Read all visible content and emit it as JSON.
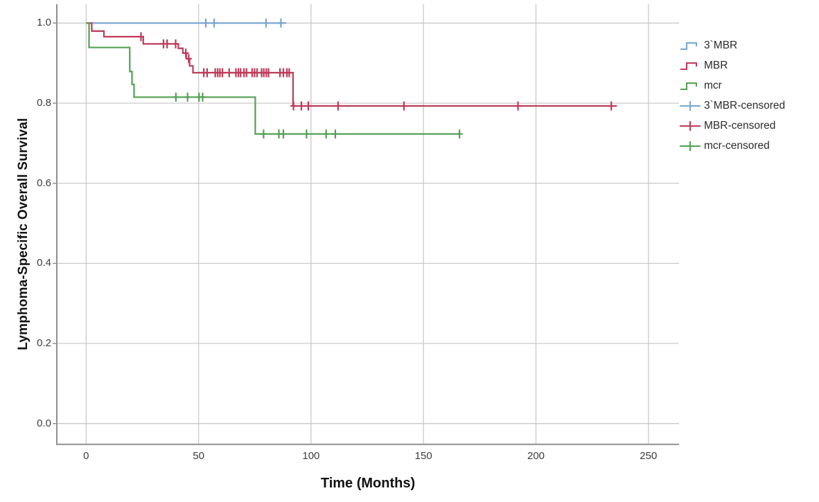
{
  "chart_data": {
    "type": "line",
    "subtype": "kaplan-meier-step-survival",
    "title": "",
    "xlabel": "Time (Months)",
    "ylabel": "Lymphoma-Specific Overall Survival",
    "xlim": [
      0,
      263
    ],
    "ylim": [
      0.0,
      1.0
    ],
    "grid": true,
    "legend_position": "right",
    "xticks": [
      {
        "value": 0,
        "label": "0"
      },
      {
        "value": 50,
        "label": "50"
      },
      {
        "value": 100,
        "label": "100"
      },
      {
        "value": 150,
        "label": "150"
      },
      {
        "value": 200,
        "label": "200"
      },
      {
        "value": 250,
        "label": "250"
      }
    ],
    "yticks": [
      {
        "value": 0.0,
        "label": "0.0"
      },
      {
        "value": 0.2,
        "label": "0.2"
      },
      {
        "value": 0.4,
        "label": "0.4"
      },
      {
        "value": 0.6,
        "label": "0.6"
      },
      {
        "value": 0.8,
        "label": "0.8"
      },
      {
        "value": 1.0,
        "label": "1.0"
      }
    ],
    "colors": {
      "blue_series": "#76A5D2",
      "red_series": "#BE3A58",
      "green_series": "#53A053",
      "grid": "#C9C9C9",
      "axis": "#8F8F8F",
      "tick_text": "#3C3C3C",
      "title_text": "#111111",
      "background": "#FFFFFF"
    },
    "series": [
      {
        "name": "3`MBR",
        "color_key": "blue_series",
        "drops": [
          [
            0,
            1.0
          ]
        ],
        "end": 89,
        "censors": [
          [
            53.2,
            1.0
          ],
          [
            56.9,
            1.0
          ],
          [
            80.0,
            1.0
          ],
          [
            86.6,
            1.0
          ]
        ]
      },
      {
        "name": "MBR",
        "color_key": "red_series",
        "drops": [
          [
            0,
            1.0
          ],
          [
            2.5,
            0.98
          ],
          [
            7.9,
            0.966
          ],
          [
            25.4,
            0.948
          ],
          [
            41.0,
            0.937
          ],
          [
            43.0,
            0.925
          ],
          [
            44.5,
            0.911
          ],
          [
            46.0,
            0.893
          ],
          [
            47.5,
            0.876
          ],
          [
            92.0,
            0.793
          ]
        ],
        "end": 236,
        "censors": [
          [
            24.4,
            0.966
          ],
          [
            34.4,
            0.948
          ],
          [
            36.0,
            0.948
          ],
          [
            39.8,
            0.948
          ],
          [
            44.3,
            0.925
          ],
          [
            45.6,
            0.911
          ],
          [
            52.3,
            0.876
          ],
          [
            53.8,
            0.876
          ],
          [
            57.4,
            0.876
          ],
          [
            58.5,
            0.876
          ],
          [
            59.5,
            0.876
          ],
          [
            60.6,
            0.876
          ],
          [
            63.6,
            0.876
          ],
          [
            66.6,
            0.876
          ],
          [
            67.7,
            0.876
          ],
          [
            68.7,
            0.876
          ],
          [
            70.2,
            0.876
          ],
          [
            71.3,
            0.876
          ],
          [
            73.8,
            0.876
          ],
          [
            74.9,
            0.876
          ],
          [
            76.0,
            0.876
          ],
          [
            78.0,
            0.876
          ],
          [
            79.0,
            0.876
          ],
          [
            80.1,
            0.876
          ],
          [
            81.1,
            0.876
          ],
          [
            86.2,
            0.876
          ],
          [
            87.7,
            0.876
          ],
          [
            89.3,
            0.876
          ],
          [
            90.3,
            0.876
          ],
          [
            92.2,
            0.793
          ],
          [
            95.7,
            0.793
          ],
          [
            98.8,
            0.793
          ],
          [
            112.0,
            0.793
          ],
          [
            141.3,
            0.793
          ],
          [
            192.0,
            0.793
          ],
          [
            233.5,
            0.793
          ]
        ]
      },
      {
        "name": "mcr",
        "color_key": "green_series",
        "drops": [
          [
            0,
            1.0
          ],
          [
            1.3,
            0.939
          ],
          [
            19.4,
            0.879
          ],
          [
            20.4,
            0.847
          ],
          [
            21.3,
            0.815
          ],
          [
            75.2,
            0.723
          ]
        ],
        "end": 166,
        "censors": [
          [
            39.9,
            0.815
          ],
          [
            45.1,
            0.815
          ],
          [
            50.2,
            0.815
          ],
          [
            51.8,
            0.815
          ],
          [
            78.9,
            0.723
          ],
          [
            85.7,
            0.723
          ],
          [
            87.7,
            0.723
          ],
          [
            98.0,
            0.723
          ],
          [
            106.7,
            0.723
          ],
          [
            110.8,
            0.723
          ],
          [
            166.0,
            0.723
          ]
        ]
      }
    ],
    "legend": [
      {
        "label": "3`MBR",
        "glyph": "step",
        "color_key": "blue_series"
      },
      {
        "label": "MBR",
        "glyph": "step",
        "color_key": "red_series"
      },
      {
        "label": "mcr",
        "glyph": "step",
        "color_key": "green_series"
      },
      {
        "label": "3`MBR-censored",
        "glyph": "plus",
        "color_key": "blue_series"
      },
      {
        "label": "MBR-censored",
        "glyph": "plus",
        "color_key": "red_series"
      },
      {
        "label": "mcr-censored",
        "glyph": "plus",
        "color_key": "green_series"
      }
    ]
  }
}
